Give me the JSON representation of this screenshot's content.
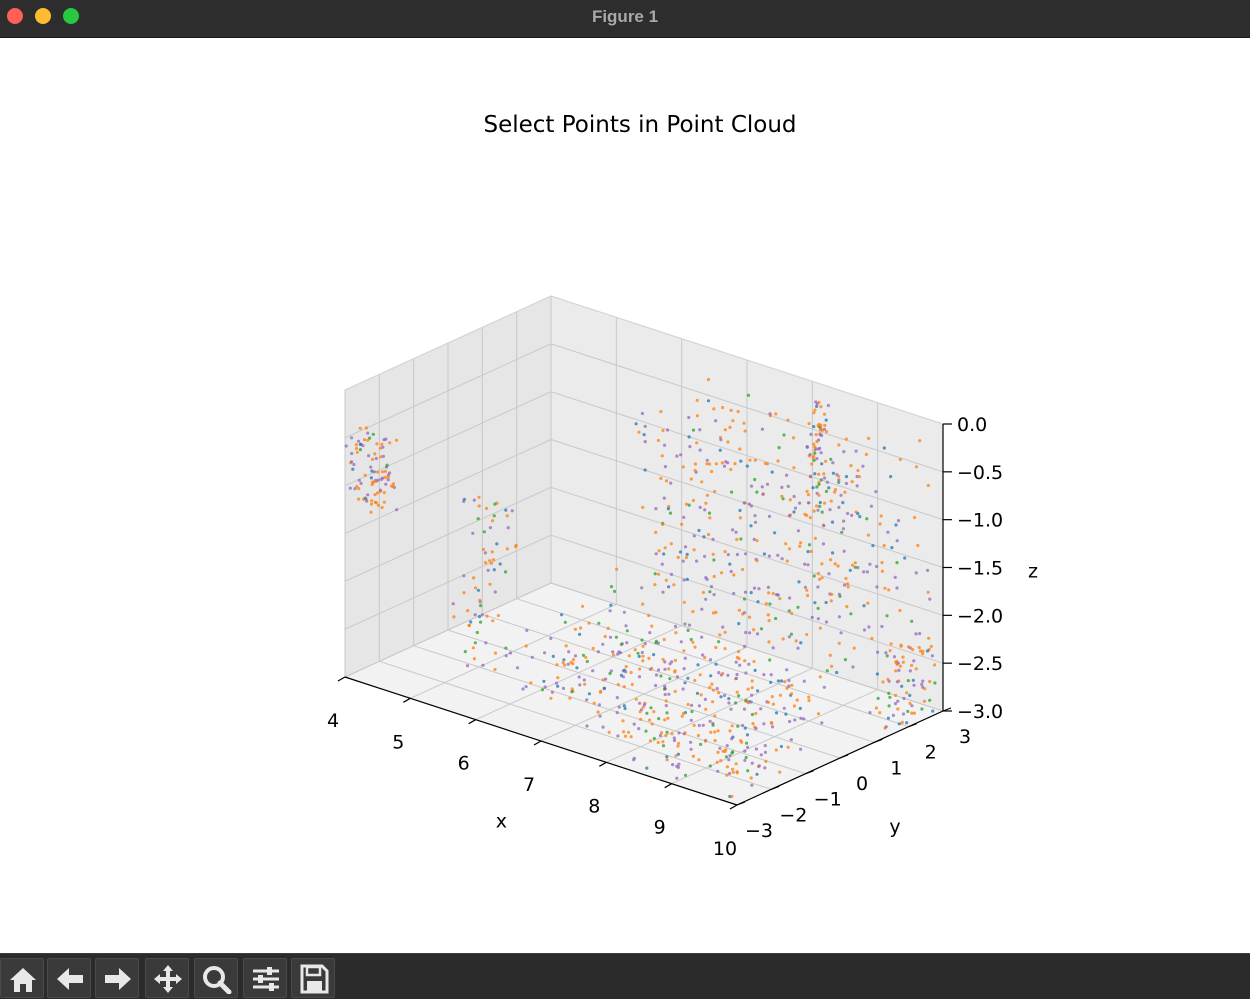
{
  "window": {
    "title": "Figure 1"
  },
  "toolbar": {
    "buttons": [
      {
        "name": "home-button",
        "icon": "home-icon"
      },
      {
        "name": "back-button",
        "icon": "arrow-left-icon"
      },
      {
        "name": "forward-button",
        "icon": "arrow-right-icon"
      },
      {
        "name": "pan-button",
        "icon": "move-icon"
      },
      {
        "name": "zoom-button",
        "icon": "magnifier-icon"
      },
      {
        "name": "configure-subplots-button",
        "icon": "sliders-icon"
      },
      {
        "name": "save-button",
        "icon": "floppy-disk-icon"
      }
    ]
  },
  "chart_data": {
    "type": "scatter",
    "projection": "3d",
    "title": "Select Points in Point Cloud",
    "xlabel": "x",
    "ylabel": "y",
    "zlabel": "z",
    "xlim": [
      4,
      10
    ],
    "ylim": [
      -3,
      3
    ],
    "zlim": [
      -3.0,
      0.0
    ],
    "xticks": [
      "4",
      "5",
      "6",
      "7",
      "8",
      "9",
      "10"
    ],
    "yticks": [
      "−3",
      "−2",
      "−1",
      "0",
      "1",
      "2",
      "3"
    ],
    "zticks": [
      "−3.0",
      "−2.5",
      "−2.0",
      "−1.5",
      "−1.0",
      "−0.5",
      "0.0"
    ],
    "grid": true,
    "colors": [
      "#ff7f0e",
      "#9467bd",
      "#1f77b4",
      "#2ca02c"
    ],
    "series_colors_note_free": true,
    "clusters": [
      {
        "x": [
          4.0,
          4.6
        ],
        "y": [
          -3.0,
          -2.6
        ],
        "z": [
          -1.2,
          -0.4
        ],
        "n": 90
      },
      {
        "x": [
          5.6,
          6.2
        ],
        "y": [
          -3.0,
          -2.0
        ],
        "z": [
          -2.6,
          -0.8
        ],
        "n": 70
      },
      {
        "x": [
          6.0,
          9.5
        ],
        "y": [
          -2.0,
          1.0
        ],
        "z": [
          -3.0,
          -2.2
        ],
        "n": 320
      },
      {
        "x": [
          6.5,
          10.0
        ],
        "y": [
          0.0,
          3.0
        ],
        "z": [
          -2.5,
          -0.2
        ],
        "n": 420
      },
      {
        "x": [
          8.4,
          8.6
        ],
        "y": [
          2.0,
          2.4
        ],
        "z": [
          -1.2,
          0.0
        ],
        "n": 60
      },
      {
        "x": [
          8.0,
          10.0
        ],
        "y": [
          -3.0,
          -1.0
        ],
        "z": [
          -3.0,
          -2.6
        ],
        "n": 90
      },
      {
        "x": [
          9.6,
          10.0
        ],
        "y": [
          1.5,
          3.0
        ],
        "z": [
          -3.0,
          -2.2
        ],
        "n": 80
      }
    ]
  }
}
